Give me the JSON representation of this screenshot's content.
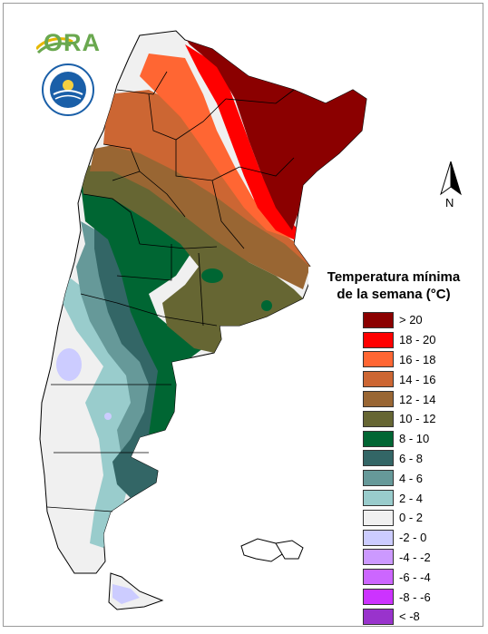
{
  "logos": {
    "ora_text": "ORA",
    "seal_top_text": "SERVICIO METEOROLÓGICO NACIONAL",
    "seal_bottom_text": "ARGENTINA"
  },
  "north_arrow": {
    "label": "N"
  },
  "legend": {
    "title_line1": "Temperatura mínima",
    "title_line2": "de la semana (°C)",
    "items": [
      {
        "label": "> 20",
        "color": "#8b0000"
      },
      {
        "label": "18 - 20",
        "color": "#ff0000"
      },
      {
        "label": "16 - 18",
        "color": "#ff6633"
      },
      {
        "label": "14 - 16",
        "color": "#cc6633"
      },
      {
        "label": "12 - 14",
        "color": "#996633"
      },
      {
        "label": "10 - 12",
        "color": "#666633"
      },
      {
        "label": "8 - 10",
        "color": "#006633"
      },
      {
        "label": "6 - 8",
        "color": "#336666"
      },
      {
        "label": "4 - 6",
        "color": "#669999"
      },
      {
        "label": "2 - 4",
        "color": "#99cccc"
      },
      {
        "label": "0 - 2",
        "color": "#f0f0f0"
      },
      {
        "label": "-2 - 0",
        "color": "#ccccff"
      },
      {
        "label": "-4 - -2",
        "color": "#cc99ff"
      },
      {
        "label": "-6 - -4",
        "color": "#cc66ff"
      },
      {
        "label": "-8 - -6",
        "color": "#cc33ff"
      },
      {
        "label": "< -8",
        "color": "#9933cc"
      }
    ]
  }
}
